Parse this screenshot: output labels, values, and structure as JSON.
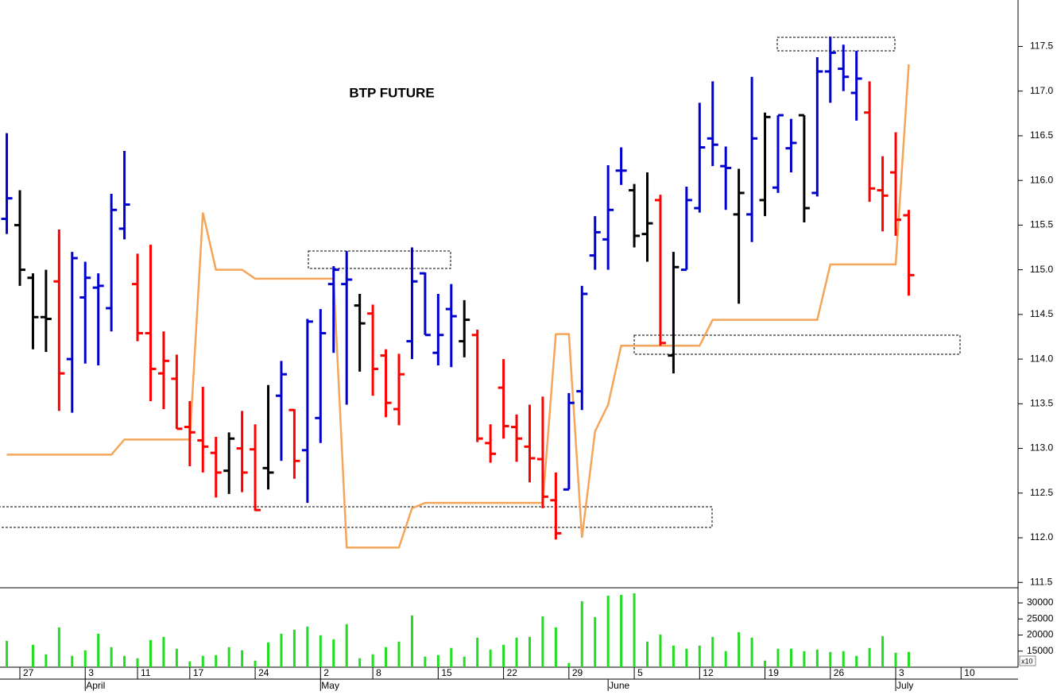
{
  "chart_data": {
    "type": "ohlc",
    "title": "BTP FUTURE",
    "open": [
      115.57,
      115.5,
      114.91,
      114.47,
      114.87,
      114.0,
      114.69,
      114.8,
      114.57,
      115.46,
      114.84,
      114.29,
      113.84,
      113.78,
      113.24,
      113.09,
      112.95,
      112.75,
      113.0,
      112.99,
      112.78,
      113.59,
      113.43,
      112.98,
      113.34,
      114.84,
      114.84,
      114.6,
      114.51,
      114.04,
      113.44,
      114.2,
      114.96,
      114.07,
      114.56,
      114.2,
      114.27,
      113.06,
      113.68,
      113.24,
      113.02,
      112.88,
      112.42,
      112.54,
      113.64,
      115.16,
      115.34,
      116.11,
      115.89,
      115.4,
      115.78,
      114.04,
      115.0,
      115.69,
      116.47,
      116.16,
      115.62,
      115.62,
      115.78,
      115.92,
      116.36,
      116.73,
      115.86,
      117.22,
      117.25,
      116.98,
      116.76,
      115.89,
      116.09,
      115.61
    ],
    "high": [
      116.53,
      115.89,
      114.96,
      115.0,
      115.45,
      115.2,
      115.09,
      114.96,
      115.85,
      116.33,
      115.18,
      115.28,
      114.31,
      114.05,
      113.53,
      113.69,
      113.13,
      113.18,
      113.42,
      113.27,
      113.71,
      113.98,
      113.44,
      114.45,
      114.56,
      115.04,
      115.21,
      114.73,
      114.61,
      114.11,
      114.06,
      115.25,
      114.97,
      114.73,
      114.84,
      114.66,
      114.33,
      113.27,
      114.0,
      113.38,
      113.49,
      113.58,
      112.73,
      113.62,
      114.82,
      115.6,
      116.17,
      116.37,
      115.96,
      116.09,
      115.84,
      115.2,
      115.93,
      116.87,
      117.11,
      116.38,
      116.13,
      117.16,
      116.76,
      116.73,
      116.69,
      116.73,
      117.38,
      117.61,
      117.52,
      117.45,
      117.11,
      116.27,
      116.54,
      115.67
    ],
    "low": [
      115.4,
      114.82,
      114.11,
      114.08,
      113.42,
      113.4,
      113.95,
      113.93,
      114.31,
      115.34,
      114.2,
      113.53,
      113.44,
      113.22,
      112.8,
      112.73,
      112.45,
      112.49,
      112.51,
      112.3,
      112.54,
      112.86,
      112.66,
      112.39,
      113.06,
      114.07,
      113.49,
      113.86,
      113.59,
      113.35,
      113.26,
      114.0,
      114.27,
      113.93,
      113.91,
      114.02,
      113.07,
      112.84,
      113.11,
      112.85,
      112.62,
      112.33,
      111.98,
      112.54,
      113.43,
      115.0,
      115.0,
      115.95,
      115.25,
      115.09,
      114.15,
      113.84,
      115.0,
      115.64,
      116.16,
      115.67,
      114.62,
      115.31,
      115.6,
      115.86,
      116.09,
      115.53,
      115.82,
      116.87,
      117.0,
      116.67,
      115.76,
      115.43,
      115.38,
      114.71
    ],
    "close": [
      115.8,
      115.0,
      114.47,
      114.45,
      113.84,
      115.13,
      114.91,
      114.82,
      115.67,
      115.73,
      114.29,
      113.89,
      113.98,
      113.22,
      113.18,
      113.02,
      112.73,
      113.11,
      112.73,
      112.31,
      112.73,
      113.83,
      112.86,
      114.42,
      114.29,
      115.0,
      114.89,
      114.4,
      113.89,
      113.51,
      113.83,
      114.87,
      114.27,
      114.27,
      114.48,
      114.44,
      113.11,
      112.94,
      113.25,
      113.11,
      112.89,
      112.46,
      112.05,
      113.51,
      114.73,
      115.42,
      115.67,
      116.11,
      115.38,
      115.52,
      114.18,
      115.03,
      115.78,
      116.37,
      116.4,
      116.14,
      115.86,
      116.47,
      116.71,
      116.73,
      116.42,
      115.69,
      117.22,
      117.43,
      117.16,
      117.14,
      115.91,
      115.83,
      115.56,
      114.94
    ],
    "colors": [
      "#0000d0",
      "#000000",
      "#000000",
      "#000000",
      "#ff0000",
      "#0000d0",
      "#0000d0",
      "#0000d0",
      "#0000d0",
      "#0000d0",
      "#ff0000",
      "#ff0000",
      "#ff0000",
      "#ff0000",
      "#ff0000",
      "#ff0000",
      "#ff0000",
      "#000000",
      "#ff0000",
      "#ff0000",
      "#000000",
      "#0000d0",
      "#ff0000",
      "#0000d0",
      "#0000d0",
      "#0000d0",
      "#0000d0",
      "#000000",
      "#ff0000",
      "#ff0000",
      "#ff0000",
      "#0000d0",
      "#0000d0",
      "#0000d0",
      "#0000d0",
      "#000000",
      "#ff0000",
      "#ff0000",
      "#ff0000",
      "#ff0000",
      "#ff0000",
      "#ff0000",
      "#ff0000",
      "#0000d0",
      "#0000d0",
      "#0000d0",
      "#0000d0",
      "#0000d0",
      "#000000",
      "#000000",
      "#ff0000",
      "#000000",
      "#0000d0",
      "#0000d0",
      "#0000d0",
      "#0000d0",
      "#000000",
      "#0000d0",
      "#000000",
      "#0000d0",
      "#0000d0",
      "#000000",
      "#0000d0",
      "#0000d0",
      "#0000d0",
      "#0000d0",
      "#ff0000",
      "#ff0000",
      "#ff0000",
      "#ff0000"
    ],
    "line": {
      "color": "#f5a55a",
      "x": [
        0,
        8,
        9,
        14,
        15,
        16,
        18,
        19,
        25,
        26,
        30,
        31,
        32,
        41,
        42,
        43,
        44,
        45,
        46,
        47,
        53,
        54,
        62,
        63,
        68,
        69
      ],
      "values": [
        112.93,
        112.93,
        113.1,
        113.1,
        115.64,
        115.0,
        115.0,
        114.9,
        114.9,
        111.89,
        111.89,
        112.33,
        112.39,
        112.39,
        114.28,
        114.28,
        112.0,
        113.19,
        113.49,
        114.15,
        114.15,
        114.44,
        114.44,
        115.06,
        115.06,
        117.3
      ]
    },
    "xlim": [
      -0.52,
      77.3
    ],
    "xticks": [
      {
        "value": 1,
        "label": "27"
      },
      {
        "value": 6,
        "label": "3"
      },
      {
        "value": 10,
        "label": "11"
      },
      {
        "value": 14,
        "label": "17"
      },
      {
        "value": 19,
        "label": "24"
      },
      {
        "value": 24,
        "label": "2"
      },
      {
        "value": 28,
        "label": "8"
      },
      {
        "value": 33,
        "label": "15"
      },
      {
        "value": 38,
        "label": "22"
      },
      {
        "value": 43,
        "label": "29"
      },
      {
        "value": 48,
        "label": "5"
      },
      {
        "value": 53,
        "label": "12"
      },
      {
        "value": 58,
        "label": "19"
      },
      {
        "value": 63,
        "label": "26"
      },
      {
        "value": 68,
        "label": "3"
      },
      {
        "value": 73,
        "label": "10"
      }
    ],
    "month_ticks": [
      {
        "value": 6,
        "label": "April"
      },
      {
        "value": 24,
        "label": "May"
      },
      {
        "value": 46,
        "label": "June"
      },
      {
        "value": 68,
        "label": "July"
      }
    ],
    "ylim": [
      111.44,
      118.02
    ],
    "yticks": [
      111.5,
      {
        "value": 112,
        "label": "112.0"
      },
      112.5,
      {
        "value": 113,
        "label": "113.0"
      },
      113.5,
      {
        "value": 114,
        "label": "114.0"
      },
      114.5,
      {
        "value": 115,
        "label": "115.0"
      },
      115.5,
      {
        "value": 116,
        "label": "116.0"
      },
      116.5,
      {
        "value": 117,
        "label": "117.0"
      },
      117.5
    ],
    "volume": {
      "color": "#22dd22",
      "unit_label": "x10",
      "values": [
        18200,
        null,
        16970,
        14010,
        22390,
        13520,
        15250,
        20420,
        16230,
        13520,
        12780,
        18450,
        19430,
        15740,
        11800,
        13520,
        13770,
        16230,
        15250,
        12040,
        17710,
        20420,
        21650,
        22640,
        19930,
        18690,
        23370,
        12780,
        14010,
        16230,
        17960,
        26080,
        13280,
        13770,
        15990,
        13280,
        19190,
        15490,
        16970,
        19190,
        19430,
        25840,
        22390,
        11310,
        30520,
        25590,
        32240,
        32490,
        32980,
        17960,
        20170,
        16720,
        15740,
        16720,
        19430,
        15000,
        20910,
        19190,
        12040,
        15740,
        15740,
        15000,
        15490,
        14750,
        15000,
        13520,
        15990,
        19680,
        14510,
        14750
      ],
      "ylim": [
        10000,
        34700
      ],
      "yticks": [
        15000,
        20000,
        25000,
        30000
      ]
    }
  }
}
